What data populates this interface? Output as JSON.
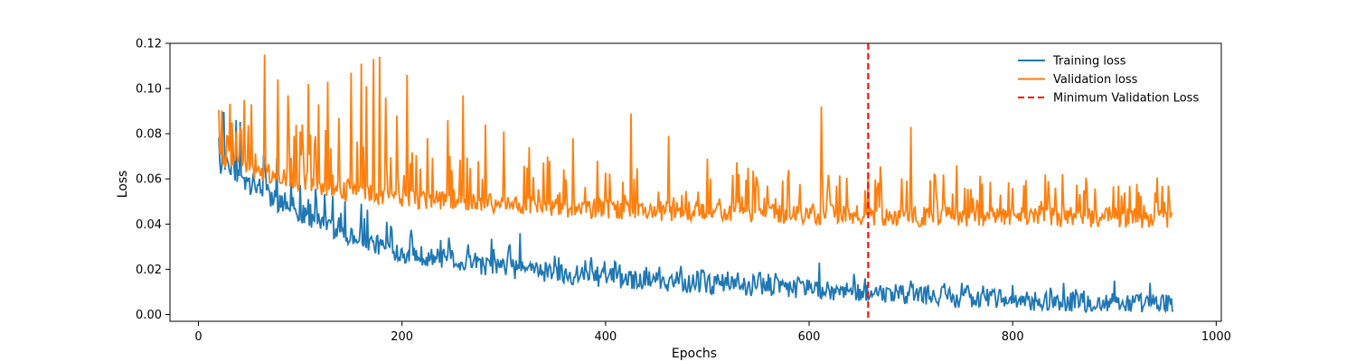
{
  "chart_data": {
    "type": "line",
    "title": "",
    "xlabel": "Epochs",
    "ylabel": "Loss",
    "xlim": [
      -28,
      1005
    ],
    "ylim": [
      -0.003,
      0.12
    ],
    "xticks": [
      0,
      200,
      400,
      600,
      800,
      1000
    ],
    "xtick_labels": [
      "0",
      "200",
      "400",
      "600",
      "800",
      "1000"
    ],
    "yticks": [
      0.0,
      0.02,
      0.04,
      0.06,
      0.08,
      0.1,
      0.12
    ],
    "ytick_labels": [
      "0.00",
      "0.02",
      "0.04",
      "0.06",
      "0.08",
      "0.10",
      "0.12"
    ],
    "grid": false,
    "legend_position": "top-right",
    "x_start": 20,
    "x_end": 957,
    "series": [
      {
        "name": "Training loss",
        "color": "#1f77b4",
        "style": "solid",
        "baseline": [
          [
            20,
            0.066
          ],
          [
            50,
            0.056
          ],
          [
            100,
            0.044
          ],
          [
            150,
            0.034
          ],
          [
            200,
            0.027
          ],
          [
            300,
            0.02
          ],
          [
            400,
            0.016
          ],
          [
            500,
            0.013
          ],
          [
            600,
            0.011
          ],
          [
            700,
            0.008
          ],
          [
            800,
            0.006
          ],
          [
            957,
            0.004
          ]
        ],
        "spikes": [
          [
            28,
            0.069
          ],
          [
            35,
            0.065
          ],
          [
            47,
            0.061
          ],
          [
            60,
            0.06
          ],
          [
            75,
            0.055
          ],
          [
            85,
            0.054
          ],
          [
            110,
            0.049
          ],
          [
            140,
            0.045
          ],
          [
            160,
            0.049
          ],
          [
            185,
            0.041
          ],
          [
            210,
            0.034
          ],
          [
            238,
            0.033
          ],
          [
            265,
            0.031
          ],
          [
            290,
            0.029
          ],
          [
            316,
            0.036
          ],
          [
            350,
            0.026
          ],
          [
            380,
            0.024
          ],
          [
            410,
            0.023
          ],
          [
            440,
            0.021
          ],
          [
            470,
            0.019
          ],
          [
            520,
            0.019
          ],
          [
            560,
            0.018
          ],
          [
            610,
            0.023
          ],
          [
            655,
            0.016
          ],
          [
            700,
            0.015
          ],
          [
            750,
            0.014
          ],
          [
            800,
            0.013
          ],
          [
            850,
            0.014
          ],
          [
            900,
            0.015
          ],
          [
            935,
            0.014
          ]
        ]
      },
      {
        "name": "Validation loss",
        "color": "#ff7f0e",
        "style": "solid",
        "baseline": [
          [
            20,
            0.069
          ],
          [
            50,
            0.064
          ],
          [
            100,
            0.058
          ],
          [
            150,
            0.054
          ],
          [
            200,
            0.051
          ],
          [
            300,
            0.048
          ],
          [
            400,
            0.046
          ],
          [
            500,
            0.045
          ],
          [
            600,
            0.044
          ],
          [
            700,
            0.043
          ],
          [
            800,
            0.043
          ],
          [
            957,
            0.042
          ]
        ],
        "spikes": [
          [
            28,
            0.079
          ],
          [
            33,
            0.085
          ],
          [
            45,
            0.095
          ],
          [
            52,
            0.093
          ],
          [
            65,
            0.115
          ],
          [
            78,
            0.104
          ],
          [
            88,
            0.097
          ],
          [
            100,
            0.081
          ],
          [
            108,
            0.102
          ],
          [
            118,
            0.093
          ],
          [
            127,
            0.103
          ],
          [
            138,
            0.087
          ],
          [
            150,
            0.107
          ],
          [
            160,
            0.111
          ],
          [
            165,
            0.101
          ],
          [
            172,
            0.113
          ],
          [
            178,
            0.114
          ],
          [
            184,
            0.096
          ],
          [
            195,
            0.088
          ],
          [
            205,
            0.106
          ],
          [
            225,
            0.078
          ],
          [
            245,
            0.086
          ],
          [
            260,
            0.097
          ],
          [
            282,
            0.084
          ],
          [
            300,
            0.081
          ],
          [
            325,
            0.074
          ],
          [
            345,
            0.068
          ],
          [
            368,
            0.078
          ],
          [
            392,
            0.068
          ],
          [
            425,
            0.089
          ],
          [
            462,
            0.079
          ],
          [
            500,
            0.069
          ],
          [
            540,
            0.065
          ],
          [
            580,
            0.064
          ],
          [
            612,
            0.092
          ],
          [
            655,
            0.055
          ],
          [
            700,
            0.083
          ],
          [
            732,
            0.062
          ],
          [
            745,
            0.066
          ],
          [
            770,
            0.058
          ],
          [
            800,
            0.056
          ],
          [
            835,
            0.059
          ],
          [
            870,
            0.055
          ],
          [
            910,
            0.054
          ],
          [
            940,
            0.054
          ]
        ]
      },
      {
        "name": "Minimum Validation Loss",
        "color": "#ff0000",
        "style": "dashed",
        "x": 658
      }
    ]
  }
}
